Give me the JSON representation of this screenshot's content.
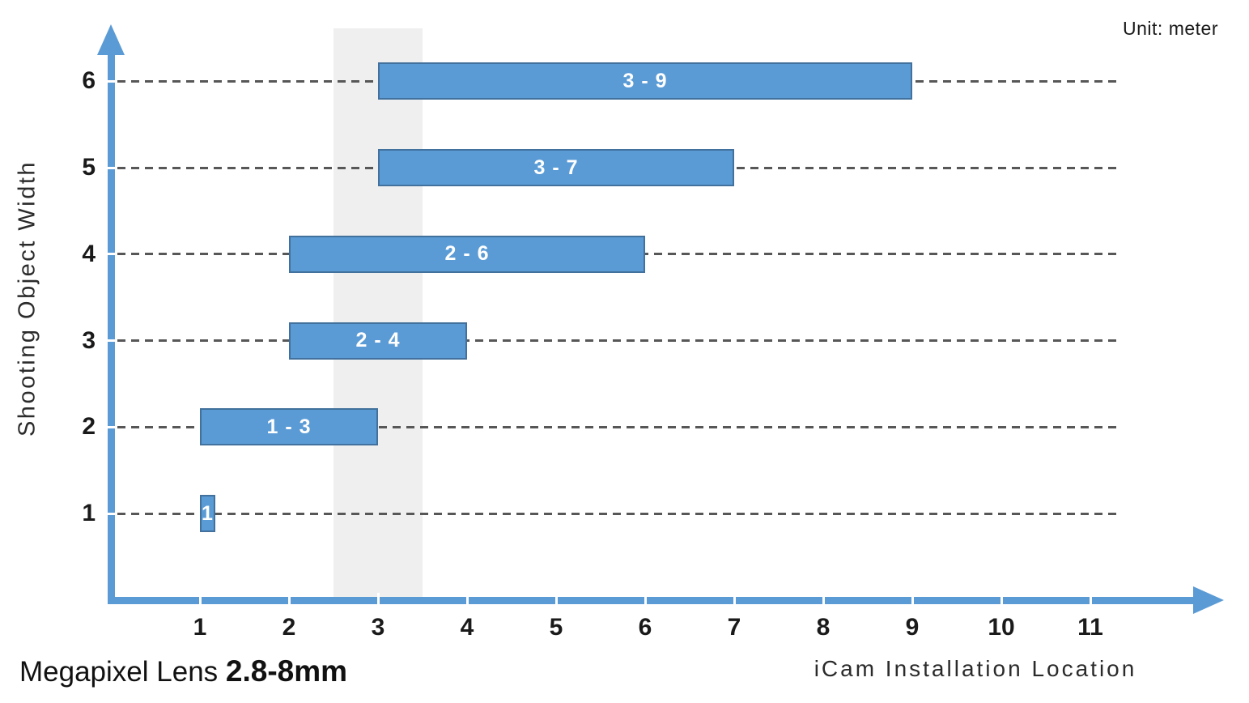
{
  "unit_label": "Unit: meter",
  "title": {
    "prefix": "Megapixel Lens ",
    "bold": "2.8-8mm"
  },
  "chart_data": {
    "type": "bar",
    "subtype": "horizontal-range-bars",
    "title": "Megapixel Lens 2.8-8mm",
    "xlabel": "iCam Installation Location",
    "ylabel": "Shooting Object Width",
    "unit": "Unit: meter",
    "x_ticks": [
      1,
      2,
      3,
      4,
      5,
      6,
      7,
      8,
      9,
      10,
      11
    ],
    "y_ticks": [
      1,
      2,
      3,
      4,
      5,
      6
    ],
    "xlim": [
      0,
      12.5
    ],
    "ylim": [
      0,
      6.6
    ],
    "grid": "dashed horizontal gridlines at each y tick",
    "legend": "none",
    "bars": [
      {
        "y": 6,
        "start": 3,
        "end": 9,
        "label": "3 - 9"
      },
      {
        "y": 5,
        "start": 3,
        "end": 7,
        "label": "3 - 7"
      },
      {
        "y": 4,
        "start": 2,
        "end": 6,
        "label": "2 - 6"
      },
      {
        "y": 3,
        "start": 2,
        "end": 4,
        "label": "2 - 4"
      },
      {
        "y": 2,
        "start": 1,
        "end": 3,
        "label": "1 - 3"
      },
      {
        "y": 1,
        "start": 1,
        "end": 1,
        "label": "1"
      }
    ],
    "highlight_band": {
      "from": 2.5,
      "to": 3.5
    },
    "colors": {
      "bar_fill": "#5b9bd5",
      "bar_border": "#41719c",
      "axis": "#5b9bd5",
      "grid": "#575757",
      "band": "#efefef",
      "bar_label": "#ffffff",
      "text": "#1a1a1a"
    }
  }
}
